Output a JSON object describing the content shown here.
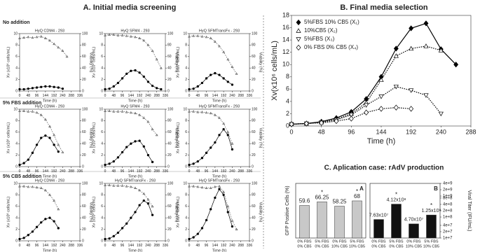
{
  "headings": {
    "a": "A.  Initial media screening",
    "b": "B. Final media selection",
    "c": "C. Aplication case: rAdV production",
    "rows": [
      "No addition",
      "5% FBS addition",
      "5% CB5 addition"
    ]
  },
  "chart_data": [
    {
      "type": "line",
      "title": "HyQ CDM4 - 293",
      "xlabel": "Time (h)",
      "ylabel": "Xv (x10⁶ cells/mL)",
      "y2label": "Viability (%)",
      "x": [
        0,
        24,
        48,
        72,
        96,
        120,
        144,
        168,
        192,
        216,
        240,
        264,
        288,
        312
      ],
      "xlim": [
        0,
        336
      ],
      "xticks": [
        0,
        48,
        96,
        144,
        192,
        240,
        288,
        336
      ],
      "ylim": [
        0,
        10
      ],
      "yticks": [
        0,
        2,
        4,
        6,
        8,
        10
      ],
      "y2lim": [
        0,
        100
      ],
      "y2ticks": [
        0,
        20,
        40,
        60,
        80,
        100
      ],
      "series": [
        {
          "color": "#000000",
          "marker": "circle",
          "filled": true,
          "dash": false,
          "values": [
            0.3,
            0.3,
            0.4,
            0.5,
            0.6,
            0.7,
            0.8,
            0.8,
            0.7,
            0.6,
            0.4,
            null,
            null,
            null
          ]
        },
        {
          "color": "#555555",
          "marker": "triangle",
          "filled": false,
          "dash": true,
          "axis": "y2",
          "values": [
            92,
            93,
            94,
            93,
            94,
            95,
            92,
            88,
            82,
            76,
            70,
            60,
            null,
            null
          ]
        }
      ]
    },
    {
      "type": "line",
      "title": "HyQ SFM4 - 293",
      "xlabel": "Time (h)",
      "ylabel": "Xv (x10⁶ cells/mL)",
      "y2label": "Viability (%)",
      "x": [
        0,
        24,
        48,
        72,
        96,
        120,
        144,
        168,
        192,
        216,
        240,
        264,
        288,
        312
      ],
      "xlim": [
        0,
        336
      ],
      "xticks": [
        0,
        48,
        96,
        144,
        192,
        240,
        288,
        336
      ],
      "ylim": [
        0,
        10
      ],
      "yticks": [
        0,
        2,
        4,
        6,
        8,
        10
      ],
      "y2lim": [
        0,
        100
      ],
      "y2ticks": [
        0,
        20,
        40,
        60,
        80,
        100
      ],
      "series": [
        {
          "color": "#000000",
          "marker": "circle",
          "filled": true,
          "dash": false,
          "values": [
            0.3,
            0.4,
            0.8,
            1.4,
            2.2,
            3.0,
            3.5,
            3.6,
            3.2,
            2.5,
            1.6,
            0.9,
            0.5,
            0.3
          ]
        },
        {
          "color": "#555555",
          "marker": "triangle",
          "filled": false,
          "dash": true,
          "axis": "y2",
          "values": [
            97,
            98,
            98,
            97,
            97,
            96,
            95,
            94,
            92,
            88,
            80,
            70,
            55,
            40
          ]
        }
      ]
    },
    {
      "type": "line",
      "title": "HyQ SFMTransFx - 293",
      "xlabel": "Time (h)",
      "ylabel": "Xv (x10⁶ cells/mL)",
      "y2label": "Viability (%)",
      "x": [
        0,
        24,
        48,
        72,
        96,
        120,
        144,
        168,
        192,
        216,
        240,
        264,
        288,
        312
      ],
      "xlim": [
        0,
        336
      ],
      "xticks": [
        0,
        48,
        96,
        144,
        192,
        240,
        288,
        336
      ],
      "ylim": [
        0,
        10
      ],
      "yticks": [
        0,
        2,
        4,
        6,
        8,
        10
      ],
      "y2lim": [
        0,
        100
      ],
      "y2ticks": [
        0,
        20,
        40,
        60,
        80,
        100
      ],
      "series": [
        {
          "color": "#000000",
          "marker": "circle",
          "filled": true,
          "dash": false,
          "values": [
            0.3,
            0.4,
            0.8,
            1.4,
            2.2,
            2.8,
            3.1,
            2.8,
            2.2,
            1.6,
            1.1,
            null,
            null,
            null
          ]
        },
        {
          "color": "#555555",
          "marker": "triangle",
          "filled": false,
          "dash": true,
          "axis": "y2",
          "values": [
            95,
            96,
            96,
            95,
            94,
            92,
            86,
            78,
            68,
            55,
            42,
            30,
            null,
            null
          ]
        }
      ]
    },
    {
      "type": "line",
      "title": "HyQ CDM4 - 293",
      "xlabel": "Time (h)",
      "ylabel": "Xv (x10⁶ cells/mL)",
      "y2label": "Viability (%)",
      "x": [
        0,
        24,
        48,
        72,
        96,
        120,
        144,
        168,
        192,
        216,
        240,
        264,
        288,
        312
      ],
      "xlim": [
        0,
        336
      ],
      "xticks": [
        0,
        48,
        96,
        144,
        192,
        240,
        288,
        336
      ],
      "ylim": [
        0,
        10
      ],
      "yticks": [
        0,
        2,
        4,
        6,
        8,
        10
      ],
      "y2lim": [
        0,
        100
      ],
      "y2ticks": [
        0,
        20,
        40,
        60,
        80,
        100
      ],
      "series": [
        {
          "color": "#000000",
          "marker": "circle",
          "filled": true,
          "dash": false,
          "values": [
            0.3,
            0.6,
            1.2,
            2.4,
            3.8,
            5.0,
            5.4,
            5.0,
            3.8,
            2.6,
            null,
            null,
            null,
            null
          ]
        },
        {
          "color": "#555555",
          "marker": "triangle",
          "filled": false,
          "dash": true,
          "axis": "y2",
          "values": [
            97,
            97,
            96,
            96,
            94,
            90,
            82,
            70,
            55,
            38,
            25,
            null,
            null,
            null
          ]
        }
      ]
    },
    {
      "type": "line",
      "title": "HyQ SFM4 - 293",
      "xlabel": "Time (h)",
      "ylabel": "Xv (x10⁶ cells/mL)",
      "y2label": "Viability (%)",
      "x": [
        0,
        24,
        48,
        72,
        96,
        120,
        144,
        168,
        192,
        216,
        240,
        264,
        288,
        312
      ],
      "xlim": [
        0,
        336
      ],
      "xticks": [
        0,
        48,
        96,
        144,
        192,
        240,
        288,
        336
      ],
      "ylim": [
        0,
        10
      ],
      "yticks": [
        0,
        2,
        4,
        6,
        8,
        10
      ],
      "y2lim": [
        0,
        100
      ],
      "y2ticks": [
        0,
        20,
        40,
        60,
        80,
        100
      ],
      "series": [
        {
          "color": "#000000",
          "marker": "circle",
          "filled": true,
          "dash": false,
          "values": [
            0.3,
            0.5,
            0.9,
            1.6,
            2.5,
            3.4,
            4.0,
            4.4,
            4.5,
            3.5,
            2.0,
            0.8,
            null,
            null
          ]
        },
        {
          "color": "#555555",
          "marker": "triangle",
          "filled": false,
          "dash": true,
          "axis": "y2",
          "values": [
            97,
            97,
            96,
            96,
            96,
            95,
            94,
            93,
            90,
            85,
            78,
            65,
            55,
            null
          ]
        }
      ]
    },
    {
      "type": "line",
      "title": "HyQ SFMTransFx - 293",
      "xlabel": "Time (h)",
      "ylabel": "Xv (x10⁶ cells/mL)",
      "y2label": "Viability (%)",
      "x": [
        0,
        24,
        48,
        72,
        96,
        120,
        144,
        168,
        192,
        216,
        240,
        264,
        288,
        312
      ],
      "xlim": [
        0,
        336
      ],
      "xticks": [
        0,
        48,
        96,
        144,
        192,
        240,
        288,
        336
      ],
      "ylim": [
        0,
        10
      ],
      "yticks": [
        0,
        2,
        4,
        6,
        8,
        10
      ],
      "y2lim": [
        0,
        100
      ],
      "y2ticks": [
        0,
        20,
        40,
        60,
        80,
        100
      ],
      "series": [
        {
          "color": "#000000",
          "marker": "circle",
          "filled": true,
          "dash": false,
          "values": [
            0.3,
            0.5,
            0.9,
            1.5,
            2.4,
            3.3,
            4.2,
            5.5,
            6.5,
            5.5,
            3.0,
            null,
            null,
            null
          ]
        },
        {
          "color": "#555555",
          "marker": "triangle",
          "filled": false,
          "dash": true,
          "axis": "y2",
          "values": [
            96,
            96,
            95,
            95,
            94,
            93,
            90,
            85,
            75,
            60,
            40,
            null,
            null,
            null
          ]
        }
      ]
    },
    {
      "type": "line",
      "title": "HyQ CDM4 - 293",
      "xlabel": "Time (h)",
      "ylabel": "Xv (x10⁶ cells/mL)",
      "y2label": "Viability (%)",
      "x": [
        0,
        24,
        48,
        72,
        96,
        120,
        144,
        168,
        192,
        216,
        240,
        264,
        288,
        312
      ],
      "xlim": [
        0,
        336
      ],
      "xticks": [
        0,
        48,
        96,
        144,
        192,
        240,
        288,
        336
      ],
      "ylim": [
        0,
        10
      ],
      "yticks": [
        0,
        2,
        4,
        6,
        8,
        10
      ],
      "y2lim": [
        0,
        100
      ],
      "y2ticks": [
        0,
        20,
        40,
        60,
        80,
        100
      ],
      "series": [
        {
          "color": "#000000",
          "marker": "circle",
          "filled": true,
          "dash": false,
          "values": [
            0.3,
            0.5,
            1.0,
            1.6,
            2.4,
            3.2,
            3.8,
            4.0,
            3.4,
            2.2,
            null,
            null,
            null,
            null
          ]
        },
        {
          "color": "#555555",
          "marker": "triangle",
          "filled": false,
          "dash": true,
          "axis": "y2",
          "values": [
            95,
            95,
            94,
            94,
            93,
            92,
            88,
            80,
            70,
            55,
            null,
            null,
            null,
            null
          ]
        }
      ]
    },
    {
      "type": "line",
      "title": "HyQ SFMTransFx - 293",
      "xlabel": "Time (h)",
      "ylabel": "Xv (x10⁶ cells/mL)",
      "y2label": "Viability (%)",
      "x": [
        0,
        24,
        48,
        72,
        96,
        120,
        144,
        168,
        192,
        216,
        240,
        264,
        288,
        312
      ],
      "xlim": [
        0,
        336
      ],
      "xticks": [
        0,
        48,
        96,
        144,
        192,
        240,
        288,
        336
      ],
      "ylim": [
        0,
        10
      ],
      "yticks": [
        0,
        2,
        4,
        6,
        8,
        10
      ],
      "y2lim": [
        0,
        100
      ],
      "y2ticks": [
        0,
        20,
        40,
        60,
        80,
        100
      ],
      "series": [
        {
          "color": "#000000",
          "marker": "circle",
          "filled": true,
          "dash": false,
          "values": [
            0.3,
            0.4,
            0.8,
            1.4,
            2.2,
            3.0,
            4.0,
            5.0,
            6.2,
            7.0,
            6.5,
            4.5,
            null,
            null
          ]
        },
        {
          "color": "#555555",
          "marker": "triangle",
          "filled": false,
          "dash": true,
          "axis": "y2",
          "values": [
            97,
            97,
            96,
            96,
            96,
            95,
            94,
            92,
            88,
            82,
            72,
            60,
            null,
            null
          ]
        }
      ]
    },
    {
      "type": "line",
      "title": "HyQ SFMTransFx - 293",
      "xlabel": "Time (h)",
      "ylabel": "Xv (x10⁶ cells/mL)",
      "y2label": "Viability (%)",
      "x": [
        0,
        24,
        48,
        72,
        96,
        120,
        144,
        168,
        192,
        216,
        240,
        264,
        288,
        312
      ],
      "xlim": [
        0,
        336
      ],
      "xticks": [
        0,
        48,
        96,
        144,
        192,
        240,
        288,
        336
      ],
      "ylim": [
        0,
        10
      ],
      "yticks": [
        0,
        2,
        4,
        6,
        8,
        10
      ],
      "y2lim": [
        0,
        100
      ],
      "y2ticks": [
        0,
        20,
        40,
        60,
        80,
        100
      ],
      "series": [
        {
          "color": "#000000",
          "marker": "circle",
          "filled": true,
          "dash": false,
          "values": [
            0.3,
            0.6,
            1.2,
            2.2,
            3.6,
            5.5,
            7.5,
            9.0,
            8.0,
            5.0,
            2.5,
            null,
            null,
            null
          ]
        },
        {
          "color": "#555555",
          "marker": "triangle",
          "filled": false,
          "dash": true,
          "axis": "y2",
          "values": [
            95,
            95,
            94,
            93,
            92,
            92,
            94,
            95,
            85,
            60,
            35,
            20,
            null,
            null
          ]
        }
      ]
    },
    {
      "type": "line",
      "xlabel": "Time (h)",
      "ylabel": "Xv(x10⁶ cells/mL)",
      "legend": "upper left",
      "x": [
        0,
        24,
        48,
        72,
        96,
        120,
        144,
        168,
        192,
        216,
        240,
        264
      ],
      "xlim": [
        0,
        288
      ],
      "xticks": [
        0,
        48,
        96,
        144,
        192,
        240,
        288
      ],
      "ylim": [
        0,
        18
      ],
      "yticks": [
        0,
        2,
        4,
        6,
        8,
        10,
        12,
        14,
        16,
        18
      ],
      "series": [
        {
          "name": "5%FBS 10% CB5 (X₁)",
          "color": "#000000",
          "marker": "diamond",
          "filled": true,
          "dash": false,
          "values": [
            0.3,
            0.4,
            0.7,
            1.3,
            2.3,
            4.4,
            8.0,
            12.6,
            15.9,
            16.7,
            12.5,
            10.0
          ]
        },
        {
          "name": "10%CB5 (X₂)",
          "color": "#000000",
          "marker": "triangle",
          "filled": false,
          "dash": true,
          "values": [
            0.3,
            0.4,
            0.6,
            1.1,
            2.0,
            3.8,
            7.5,
            11.4,
            12.6,
            13.0,
            12.3,
            null
          ]
        },
        {
          "name": "5%FBS (X₃)",
          "color": "#000000",
          "marker": "triangle-down",
          "filled": false,
          "dash": true,
          "values": [
            0.3,
            0.4,
            0.6,
            1.0,
            1.8,
            3.4,
            4.8,
            6.4,
            5.8,
            5.0,
            2.0,
            null
          ]
        },
        {
          "name": "0% FBS 0% CB5 (X₄)",
          "color": "#000000",
          "marker": "diamond",
          "filled": false,
          "dash": true,
          "values": [
            0.3,
            0.4,
            0.5,
            0.8,
            1.2,
            2.2,
            2.8,
            3.0,
            2.8,
            null,
            null,
            null
          ]
        }
      ]
    },
    {
      "type": "bar",
      "ylabel": "GFP Positive Cells (%)",
      "panel_label": "A",
      "color": "#c8c8c8",
      "categories": [
        [
          "0% FBS",
          "0% CB5"
        ],
        [
          "5% FBS",
          "0% CB5"
        ],
        [
          "0% FBS",
          "10% CB5"
        ],
        [
          "5% FBS",
          "10% CB5"
        ]
      ],
      "values": [
        59.6,
        66.25,
        58.25,
        68
      ],
      "ylim": [
        0,
        100
      ],
      "significance_label": "*",
      "significant": [
        false,
        true,
        false,
        true
      ]
    },
    {
      "type": "bar",
      "ylabel": "Viral Titer (IFU/mL)",
      "panel_label": "B",
      "color": "#111111",
      "log": true,
      "yaxis_side": "right",
      "categories": [
        [
          "0% FBS",
          "0% CB5"
        ],
        [
          "5% FBS",
          "0% CB5"
        ],
        [
          "0% FBS",
          "10% CB5"
        ],
        [
          "5% FBS",
          "10% CB5"
        ]
      ],
      "values": [
        76300000,
        412000000,
        47000000,
        125000000
      ],
      "value_labels": [
        "7.63x10⁷",
        "4.12x10⁸",
        "4.70x10⁷",
        "1.25x10⁸"
      ],
      "ylim": [
        10000000,
        4000000000
      ],
      "yticks": [
        {
          "value": 10000000,
          "label": "1e+7"
        },
        {
          "value": 20000000,
          "label": "2e+7"
        },
        {
          "value": 40000000,
          "label": "4e+7"
        },
        {
          "value": 100000000,
          "label": "1e+8"
        },
        {
          "value": 200000000,
          "label": "2e+8"
        },
        {
          "value": 400000000,
          "label": "4e+8"
        },
        {
          "value": 800000000,
          "label": "8e+8"
        },
        {
          "value": 1000000000,
          "label": "1e+9"
        },
        {
          "value": 2000000000,
          "label": "2e+9"
        },
        {
          "value": 4000000000,
          "label": "4e+9"
        }
      ],
      "significance_label": "*",
      "significant": [
        false,
        true,
        false,
        true
      ]
    }
  ]
}
